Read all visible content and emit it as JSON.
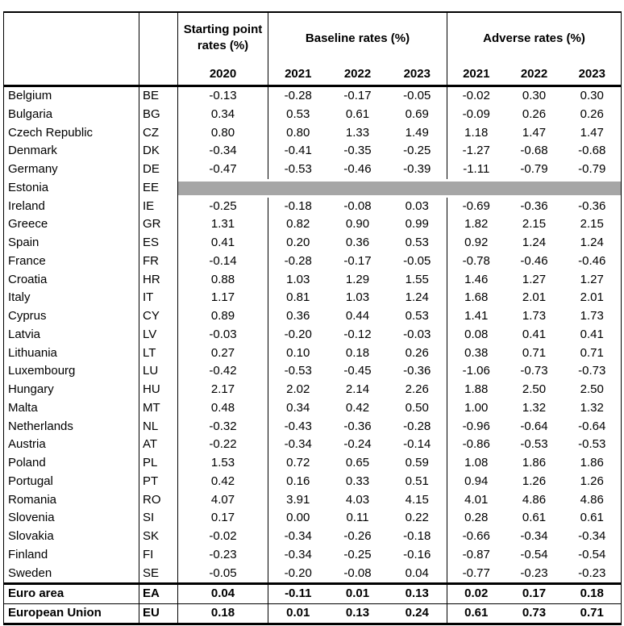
{
  "table": {
    "header": {
      "group_starting": "Starting point rates (%)",
      "group_baseline": "Baseline rates (%)",
      "group_adverse": "Adverse rates (%)",
      "years": [
        "2020",
        "2021",
        "2022",
        "2023",
        "2021",
        "2022",
        "2023"
      ]
    },
    "rows": [
      {
        "country": "Belgium",
        "code": "BE",
        "values": [
          "-0.13",
          "-0.28",
          "-0.17",
          "-0.05",
          "-0.02",
          "0.30",
          "0.30"
        ]
      },
      {
        "country": "Bulgaria",
        "code": "BG",
        "values": [
          "0.34",
          "0.53",
          "0.61",
          "0.69",
          "-0.09",
          "0.26",
          "0.26"
        ]
      },
      {
        "country": "Czech Republic",
        "code": "CZ",
        "values": [
          "0.80",
          "0.80",
          "1.33",
          "1.49",
          "1.18",
          "1.47",
          "1.47"
        ]
      },
      {
        "country": "Denmark",
        "code": "DK",
        "values": [
          "-0.34",
          "-0.41",
          "-0.35",
          "-0.25",
          "-1.27",
          "-0.68",
          "-0.68"
        ]
      },
      {
        "country": "Germany",
        "code": "DE",
        "values": [
          "-0.47",
          "-0.53",
          "-0.46",
          "-0.39",
          "-1.11",
          "-0.79",
          "-0.79"
        ]
      },
      {
        "country": "Estonia",
        "code": "EE",
        "values": [
          "",
          "",
          "",
          "",
          "",
          "",
          ""
        ],
        "redacted": true
      },
      {
        "country": "Ireland",
        "code": "IE",
        "values": [
          "-0.25",
          "-0.18",
          "-0.08",
          "0.03",
          "-0.69",
          "-0.36",
          "-0.36"
        ]
      },
      {
        "country": "Greece",
        "code": "GR",
        "values": [
          "1.31",
          "0.82",
          "0.90",
          "0.99",
          "1.82",
          "2.15",
          "2.15"
        ]
      },
      {
        "country": "Spain",
        "code": "ES",
        "values": [
          "0.41",
          "0.20",
          "0.36",
          "0.53",
          "0.92",
          "1.24",
          "1.24"
        ]
      },
      {
        "country": "France",
        "code": "FR",
        "values": [
          "-0.14",
          "-0.28",
          "-0.17",
          "-0.05",
          "-0.78",
          "-0.46",
          "-0.46"
        ]
      },
      {
        "country": "Croatia",
        "code": "HR",
        "values": [
          "0.88",
          "1.03",
          "1.29",
          "1.55",
          "1.46",
          "1.27",
          "1.27"
        ]
      },
      {
        "country": "Italy",
        "code": "IT",
        "values": [
          "1.17",
          "0.81",
          "1.03",
          "1.24",
          "1.68",
          "2.01",
          "2.01"
        ]
      },
      {
        "country": "Cyprus",
        "code": "CY",
        "values": [
          "0.89",
          "0.36",
          "0.44",
          "0.53",
          "1.41",
          "1.73",
          "1.73"
        ]
      },
      {
        "country": "Latvia",
        "code": "LV",
        "values": [
          "-0.03",
          "-0.20",
          "-0.12",
          "-0.03",
          "0.08",
          "0.41",
          "0.41"
        ]
      },
      {
        "country": "Lithuania",
        "code": "LT",
        "values": [
          "0.27",
          "0.10",
          "0.18",
          "0.26",
          "0.38",
          "0.71",
          "0.71"
        ]
      },
      {
        "country": "Luxembourg",
        "code": "LU",
        "values": [
          "-0.42",
          "-0.53",
          "-0.45",
          "-0.36",
          "-1.06",
          "-0.73",
          "-0.73"
        ]
      },
      {
        "country": "Hungary",
        "code": "HU",
        "values": [
          "2.17",
          "2.02",
          "2.14",
          "2.26",
          "1.88",
          "2.50",
          "2.50"
        ]
      },
      {
        "country": "Malta",
        "code": "MT",
        "values": [
          "0.48",
          "0.34",
          "0.42",
          "0.50",
          "1.00",
          "1.32",
          "1.32"
        ]
      },
      {
        "country": "Netherlands",
        "code": "NL",
        "values": [
          "-0.32",
          "-0.43",
          "-0.36",
          "-0.28",
          "-0.96",
          "-0.64",
          "-0.64"
        ]
      },
      {
        "country": "Austria",
        "code": "AT",
        "values": [
          "-0.22",
          "-0.34",
          "-0.24",
          "-0.14",
          "-0.86",
          "-0.53",
          "-0.53"
        ]
      },
      {
        "country": "Poland",
        "code": "PL",
        "values": [
          "1.53",
          "0.72",
          "0.65",
          "0.59",
          "1.08",
          "1.86",
          "1.86"
        ]
      },
      {
        "country": "Portugal",
        "code": "PT",
        "values": [
          "0.42",
          "0.16",
          "0.33",
          "0.51",
          "0.94",
          "1.26",
          "1.26"
        ]
      },
      {
        "country": "Romania",
        "code": "RO",
        "values": [
          "4.07",
          "3.91",
          "4.03",
          "4.15",
          "4.01",
          "4.86",
          "4.86"
        ]
      },
      {
        "country": "Slovenia",
        "code": "SI",
        "values": [
          "0.17",
          "0.00",
          "0.11",
          "0.22",
          "0.28",
          "0.61",
          "0.61"
        ]
      },
      {
        "country": "Slovakia",
        "code": "SK",
        "values": [
          "-0.02",
          "-0.34",
          "-0.26",
          "-0.18",
          "-0.66",
          "-0.34",
          "-0.34"
        ]
      },
      {
        "country": "Finland",
        "code": "FI",
        "values": [
          "-0.23",
          "-0.34",
          "-0.25",
          "-0.16",
          "-0.87",
          "-0.54",
          "-0.54"
        ]
      },
      {
        "country": "Sweden",
        "code": "SE",
        "values": [
          "-0.05",
          "-0.20",
          "-0.08",
          "0.04",
          "-0.77",
          "-0.23",
          "-0.23"
        ]
      }
    ],
    "summary_rows": [
      {
        "country": "Euro area",
        "code": "EA",
        "values": [
          "0.04",
          "-0.11",
          "0.01",
          "0.13",
          "0.02",
          "0.17",
          "0.18"
        ]
      },
      {
        "country": "European Union",
        "code": "EU",
        "values": [
          "0.18",
          "0.01",
          "0.13",
          "0.24",
          "0.61",
          "0.73",
          "0.71"
        ]
      }
    ]
  },
  "colors": {
    "table_border": "#000000",
    "redacted_bar": "#a6a6a6"
  }
}
